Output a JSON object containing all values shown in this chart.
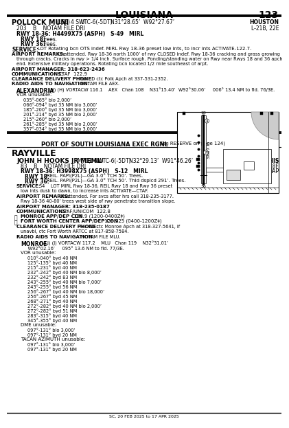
{
  "title": "LOUISIANA",
  "page_num": "123",
  "bg_color": "#ffffff",
  "pollock": {
    "name": "POLLOCK MUNI",
    "id": "(L66)",
    "dist": "4 SW",
    "utc": "UTC-6(-5DT)",
    "coords": "N31°28.65’  W92°27.67’",
    "right1": "HOUSTON",
    "right2": "L-21B, 22E",
    "line2": "203    B    NOTAM FILE DRI",
    "rwy": "RWY 18-36: H4499X75 (ASPH)   S-49   MIRL",
    "rwy18": "Trees.",
    "rwy36": "Trees.",
    "service_rest": "   LOT Rotating bcn OTS indef. MIRL Rwy 18-36 preset low ints, to incr ints ACTIVATE-122.7.",
    "remarks1": " Unattended. Rwy 18-36 north 1000’ of rwy CLOSED indef. Rwy 18-36 cracking and grass growing",
    "remarks2": "through cracks. Cracks in rwy > 1/4 inch. Surface rough. Ponding/standing water on Rwy near Rwys 18 and 36 apch",
    "remarks3": "end. Extensive military operations. Rotating bcn located 1/2 mile southeast of arpt.",
    "manager": "AIRPORT MANAGER: 318-623-2436",
    "comm_rest": " CTAF  122.9",
    "clear_rest": " For CD ctc Polk Apch at 337-531-2352.",
    "radio_rest": "  NOTAM FILE AEX.",
    "alex_rest": "  (H) (H) VORTACW 116.1    AEX   Chan 108    N31°15.40’  W92°30.06’     006° 13.4 NM to fld. 76/3E.",
    "vor_lines": [
      "035°-065° blo 2,000’",
      "066°-094° byd 35 NM blo 3,000’",
      "185°-200° byd 35 NM blo 3,000’",
      "201°-214° byd 35 NM blo 2,000’",
      "215°-260° blo 2,000’",
      "261°-285° byd 35 NM blo 2,000’",
      "357°-034° byd 35 NM blo 3,000’"
    ]
  },
  "port": {
    "text": "PORT OF SOUTH LOUISIANA EXEC RGNL",
    "sub": "(See RESERVE on page 124)"
  },
  "rayville": {
    "city": "RAYVILLE",
    "name": "JOHN H HOOKS JR MEML",
    "id": "(M79)",
    "dist": "1 NW",
    "utc": "UTC-6(-5DT)",
    "coords": "N32°29.13’  W91°46.26’",
    "right1": "MEMPHIS",
    "right2": "L-18F",
    "right3": "IAP",
    "line2": "83    B    NOTAM FILE DRI",
    "rwy": "RWY 18-36: H3998X75 (ASPH)   S-12   MIRL",
    "rwy18_rest": "REIL. PAPI(P2L)—GA 3.0° TCH 50’. Trees.",
    "rwy36_rest": "REIL. PAPI(P2L)—GA 3.0° TCH 50’. Thld dsplcd 291’. Trees.",
    "service_rest": "S4    LOT MIRL Rwy 18-36, REIL Rwy 18 and Rwy 36 preset",
    "service_rest2": "low ints dusk to dawn, to increase ints ACTIVATE—CTAF.",
    "remarks1": " Unattended. For svcs after hrs call 318-235-3177.",
    "remarks2": "Rwy 18-36 40-80’ trees west side of rwy penetrate transition slope.",
    "manager": "AIRPORT MANAGER: 318-235-0187",
    "comm_rest": " CTAF/UNICOM  122.8",
    "monroe_app": "MONROE APP/DEP CON 126.9 (1200-0400Z‡)",
    "fort_worth": "FORT WORTH CENTER APP/DEP CON 126.325 (0400-1200Z‡)",
    "clear1": " For CD ctc Monroe Apch at 318-327-5641, if",
    "clear2": "unavbl, ctc Fort Worth ARTCC at 817-858-7584.",
    "radio_rest": "  NOTAM FILE MLU.",
    "monroe_nav1": "MONROE",
    "monroe_nav2": "  (VLJ) (J) VORTACW 117.2    MLU   Chan 119    N32°31.01’",
    "monroe_nav3": "     W92°02.16’     095° 13.6 NM to fld. 77/3E.",
    "vor_lines": [
      "010°-040° byd 40 NM",
      "125°-135° byd 40 NM",
      "215°-231° byd 40 NM",
      "232°-242° byd 40 NM blo 8,000’",
      "232°-242° byd 83 NM",
      "243°-255° byd 40 NM blo 7,000’",
      "243°-255° byd 56 NM",
      "256°-267° byd 40 NM blo 18,000’",
      "256°-267° byd 45 NM",
      "268°-271° byd 40 NM",
      "272°-282° byd 40 NM blo 2,000’",
      "272°-282° byd 51 NM",
      "283°-315° byd 40 NM",
      "345°-355° byd 40 NM"
    ],
    "dme_lines": [
      "097°-131° blo 3,000’",
      "097°-131° byd 20 NM"
    ],
    "tacan_lines": [
      "097°-131° blo 3,000’",
      "097°-131° byd 20 NM"
    ]
  },
  "footer": "SC, 20 FEB 2025 to 17 APR 2025"
}
